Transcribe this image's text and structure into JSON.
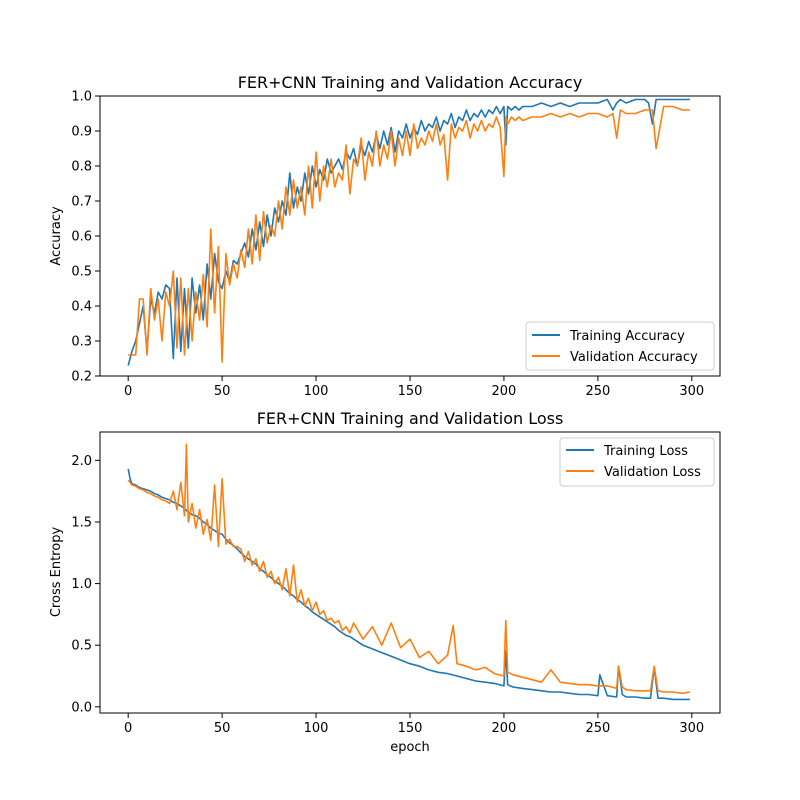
{
  "chart_data": [
    {
      "type": "line",
      "title": "FER+CNN Training and Validation Accuracy",
      "xlabel": "",
      "ylabel": "Accuracy",
      "xlim": [
        -15,
        315
      ],
      "ylim": [
        0.2,
        1.0
      ],
      "xticks": [
        0,
        50,
        100,
        150,
        200,
        250,
        300
      ],
      "yticks": [
        0.2,
        0.3,
        0.4,
        0.5,
        0.6,
        0.7,
        0.8,
        0.9,
        1.0
      ],
      "ytick_labels": [
        "0.2",
        "0.3",
        "0.4",
        "0.5",
        "0.6",
        "0.7",
        "0.8",
        "0.9",
        "1.0"
      ],
      "grid": false,
      "legend": "lower-right",
      "colors": {
        "Training Accuracy": "#1f77b4",
        "Validation Accuracy": "#ff7f0e"
      },
      "series": [
        {
          "name": "Training Accuracy",
          "x": [
            0,
            2,
            4,
            6,
            8,
            10,
            12,
            14,
            16,
            18,
            20,
            22,
            24,
            26,
            28,
            30,
            32,
            34,
            36,
            38,
            40,
            42,
            44,
            46,
            48,
            50,
            52,
            54,
            56,
            58,
            60,
            62,
            64,
            66,
            68,
            70,
            72,
            74,
            76,
            78,
            80,
            82,
            84,
            86,
            88,
            90,
            92,
            94,
            96,
            98,
            100,
            102,
            104,
            106,
            108,
            110,
            112,
            114,
            116,
            118,
            120,
            122,
            124,
            126,
            128,
            130,
            132,
            134,
            136,
            138,
            140,
            142,
            144,
            146,
            148,
            150,
            152,
            154,
            156,
            158,
            160,
            162,
            164,
            166,
            168,
            170,
            172,
            174,
            176,
            178,
            180,
            182,
            184,
            186,
            188,
            190,
            192,
            194,
            196,
            198,
            200,
            201,
            202,
            204,
            206,
            208,
            210,
            215,
            220,
            225,
            230,
            235,
            240,
            245,
            250,
            255,
            258,
            260,
            262,
            265,
            270,
            275,
            277,
            279,
            281,
            285,
            290,
            295,
            299
          ],
          "values": [
            0.23,
            0.27,
            0.3,
            0.35,
            0.4,
            0.27,
            0.42,
            0.38,
            0.44,
            0.42,
            0.46,
            0.45,
            0.25,
            0.48,
            0.27,
            0.45,
            0.28,
            0.48,
            0.38,
            0.46,
            0.36,
            0.52,
            0.42,
            0.55,
            0.47,
            0.45,
            0.5,
            0.47,
            0.53,
            0.52,
            0.55,
            0.58,
            0.54,
            0.62,
            0.56,
            0.64,
            0.57,
            0.66,
            0.6,
            0.68,
            0.64,
            0.7,
            0.66,
            0.78,
            0.68,
            0.74,
            0.7,
            0.78,
            0.72,
            0.8,
            0.74,
            0.79,
            0.76,
            0.82,
            0.78,
            0.8,
            0.82,
            0.79,
            0.84,
            0.82,
            0.85,
            0.8,
            0.86,
            0.83,
            0.87,
            0.84,
            0.89,
            0.85,
            0.9,
            0.86,
            0.91,
            0.84,
            0.9,
            0.88,
            0.92,
            0.88,
            0.91,
            0.89,
            0.93,
            0.9,
            0.92,
            0.91,
            0.94,
            0.9,
            0.93,
            0.92,
            0.95,
            0.91,
            0.94,
            0.93,
            0.96,
            0.93,
            0.95,
            0.94,
            0.96,
            0.94,
            0.96,
            0.95,
            0.97,
            0.95,
            0.97,
            0.86,
            0.97,
            0.96,
            0.97,
            0.96,
            0.97,
            0.97,
            0.98,
            0.97,
            0.98,
            0.97,
            0.98,
            0.98,
            0.98,
            0.99,
            0.96,
            0.98,
            0.99,
            0.98,
            0.99,
            0.99,
            0.98,
            0.92,
            0.99,
            0.99,
            0.99,
            0.99,
            0.99
          ]
        },
        {
          "name": "Validation Accuracy",
          "x": [
            0,
            2,
            4,
            6,
            8,
            10,
            12,
            14,
            16,
            18,
            20,
            22,
            24,
            26,
            28,
            30,
            32,
            34,
            36,
            38,
            40,
            42,
            44,
            46,
            48,
            50,
            52,
            54,
            56,
            58,
            60,
            62,
            64,
            66,
            68,
            70,
            72,
            74,
            76,
            78,
            80,
            82,
            84,
            86,
            88,
            90,
            92,
            94,
            96,
            98,
            100,
            102,
            104,
            106,
            108,
            110,
            112,
            114,
            116,
            118,
            120,
            122,
            124,
            126,
            128,
            130,
            132,
            134,
            136,
            138,
            140,
            142,
            144,
            146,
            148,
            150,
            152,
            154,
            156,
            158,
            160,
            162,
            164,
            166,
            168,
            170,
            172,
            174,
            176,
            178,
            180,
            182,
            184,
            186,
            188,
            190,
            192,
            194,
            196,
            198,
            200,
            201,
            202,
            204,
            206,
            208,
            210,
            215,
            220,
            225,
            230,
            235,
            240,
            245,
            250,
            255,
            258,
            260,
            262,
            265,
            270,
            275,
            277,
            279,
            281,
            285,
            290,
            295,
            299
          ],
          "values": [
            0.26,
            0.26,
            0.26,
            0.42,
            0.42,
            0.26,
            0.45,
            0.36,
            0.42,
            0.3,
            0.44,
            0.4,
            0.5,
            0.28,
            0.48,
            0.26,
            0.45,
            0.3,
            0.44,
            0.36,
            0.49,
            0.34,
            0.62,
            0.38,
            0.57,
            0.24,
            0.55,
            0.46,
            0.52,
            0.48,
            0.56,
            0.51,
            0.62,
            0.52,
            0.66,
            0.53,
            0.67,
            0.58,
            0.63,
            0.6,
            0.7,
            0.62,
            0.74,
            0.66,
            0.76,
            0.68,
            0.74,
            0.66,
            0.8,
            0.68,
            0.84,
            0.7,
            0.8,
            0.74,
            0.82,
            0.74,
            0.78,
            0.76,
            0.86,
            0.72,
            0.82,
            0.8,
            0.88,
            0.76,
            0.84,
            0.8,
            0.9,
            0.8,
            0.86,
            0.82,
            0.9,
            0.8,
            0.88,
            0.83,
            0.9,
            0.83,
            0.92,
            0.85,
            0.88,
            0.86,
            0.9,
            0.87,
            0.92,
            0.86,
            0.89,
            0.76,
            0.92,
            0.88,
            0.91,
            0.9,
            0.93,
            0.88,
            0.92,
            0.9,
            0.93,
            0.9,
            0.92,
            0.91,
            0.94,
            0.91,
            0.77,
            0.94,
            0.92,
            0.94,
            0.93,
            0.94,
            0.93,
            0.94,
            0.94,
            0.95,
            0.94,
            0.95,
            0.94,
            0.95,
            0.95,
            0.94,
            0.95,
            0.88,
            0.96,
            0.95,
            0.95,
            0.96,
            0.96,
            0.96,
            0.85,
            0.97,
            0.97,
            0.96,
            0.96
          ]
        }
      ]
    },
    {
      "type": "line",
      "title": "FER+CNN  Training and Validation Loss",
      "xlabel": "epoch",
      "ylabel": "Cross Entropy",
      "xlim": [
        -15,
        315
      ],
      "ylim": [
        -0.05,
        2.23
      ],
      "xticks": [
        0,
        50,
        100,
        150,
        200,
        250,
        300
      ],
      "yticks": [
        0.0,
        0.5,
        1.0,
        1.5,
        2.0
      ],
      "ytick_labels": [
        "0.0",
        "0.5",
        "1.0",
        "1.5",
        "2.0"
      ],
      "grid": false,
      "legend": "upper-right",
      "colors": {
        "Training Loss": "#1f77b4",
        "Validation Loss": "#ff7f0e"
      },
      "series": [
        {
          "name": "Training Loss",
          "x": [
            0,
            1,
            2,
            4,
            6,
            8,
            10,
            12,
            14,
            16,
            18,
            20,
            22,
            24,
            26,
            28,
            30,
            32,
            34,
            36,
            38,
            40,
            42,
            44,
            46,
            48,
            50,
            52,
            54,
            56,
            58,
            60,
            62,
            64,
            66,
            68,
            70,
            72,
            74,
            76,
            78,
            80,
            82,
            84,
            86,
            88,
            90,
            92,
            94,
            96,
            98,
            100,
            102,
            104,
            106,
            108,
            110,
            112,
            114,
            116,
            118,
            120,
            125,
            130,
            135,
            140,
            145,
            150,
            155,
            160,
            165,
            170,
            175,
            180,
            185,
            190,
            195,
            200,
            201,
            202,
            205,
            210,
            215,
            220,
            225,
            230,
            235,
            240,
            245,
            250,
            251,
            255,
            260,
            261,
            263,
            265,
            270,
            275,
            278,
            280,
            282,
            285,
            290,
            295,
            299
          ],
          "values": [
            1.93,
            1.85,
            1.81,
            1.8,
            1.78,
            1.77,
            1.76,
            1.75,
            1.73,
            1.72,
            1.7,
            1.69,
            1.68,
            1.66,
            1.65,
            1.63,
            1.61,
            1.58,
            1.56,
            1.55,
            1.53,
            1.5,
            1.48,
            1.45,
            1.43,
            1.41,
            1.4,
            1.36,
            1.33,
            1.31,
            1.28,
            1.25,
            1.22,
            1.2,
            1.18,
            1.16,
            1.12,
            1.1,
            1.07,
            1.05,
            1.02,
            1.0,
            0.98,
            0.95,
            0.92,
            0.9,
            0.87,
            0.85,
            0.82,
            0.8,
            0.77,
            0.75,
            0.73,
            0.71,
            0.69,
            0.67,
            0.65,
            0.62,
            0.6,
            0.58,
            0.57,
            0.55,
            0.5,
            0.47,
            0.44,
            0.41,
            0.38,
            0.35,
            0.33,
            0.3,
            0.28,
            0.27,
            0.25,
            0.23,
            0.21,
            0.2,
            0.19,
            0.17,
            0.45,
            0.18,
            0.16,
            0.15,
            0.14,
            0.13,
            0.12,
            0.12,
            0.11,
            0.1,
            0.1,
            0.09,
            0.26,
            0.09,
            0.08,
            0.33,
            0.1,
            0.08,
            0.08,
            0.07,
            0.07,
            0.32,
            0.07,
            0.07,
            0.06,
            0.06,
            0.06
          ]
        },
        {
          "name": "Validation Loss",
          "x": [
            0,
            1,
            2,
            4,
            6,
            8,
            10,
            12,
            14,
            16,
            18,
            20,
            22,
            24,
            26,
            28,
            30,
            31,
            32,
            34,
            36,
            38,
            40,
            42,
            44,
            46,
            48,
            50,
            52,
            54,
            56,
            58,
            60,
            62,
            64,
            66,
            68,
            70,
            72,
            74,
            76,
            78,
            80,
            82,
            84,
            86,
            88,
            90,
            92,
            94,
            96,
            98,
            100,
            102,
            104,
            106,
            108,
            110,
            112,
            114,
            116,
            118,
            120,
            125,
            130,
            135,
            140,
            145,
            150,
            155,
            160,
            165,
            170,
            173,
            175,
            180,
            185,
            190,
            195,
            200,
            201,
            202,
            205,
            210,
            215,
            220,
            225,
            230,
            235,
            240,
            245,
            250,
            255,
            260,
            261,
            263,
            265,
            270,
            275,
            278,
            280,
            282,
            285,
            290,
            295,
            299
          ],
          "values": [
            1.84,
            1.82,
            1.8,
            1.79,
            1.77,
            1.76,
            1.74,
            1.73,
            1.71,
            1.7,
            1.68,
            1.67,
            1.65,
            1.75,
            1.6,
            1.82,
            1.55,
            2.13,
            1.5,
            1.65,
            1.45,
            1.6,
            1.4,
            1.52,
            1.35,
            1.8,
            1.3,
            1.85,
            1.32,
            1.36,
            1.3,
            1.3,
            1.28,
            1.18,
            1.26,
            1.15,
            1.2,
            1.1,
            1.18,
            1.05,
            1.1,
            1.0,
            1.05,
            0.95,
            1.12,
            0.9,
            1.15,
            0.85,
            0.95,
            0.82,
            0.88,
            0.78,
            0.85,
            0.75,
            0.78,
            0.7,
            0.72,
            0.68,
            0.7,
            0.62,
            0.65,
            0.6,
            0.68,
            0.55,
            0.65,
            0.5,
            0.68,
            0.48,
            0.55,
            0.4,
            0.45,
            0.35,
            0.42,
            0.66,
            0.35,
            0.33,
            0.3,
            0.32,
            0.27,
            0.25,
            0.7,
            0.28,
            0.26,
            0.24,
            0.22,
            0.2,
            0.3,
            0.2,
            0.19,
            0.18,
            0.18,
            0.17,
            0.17,
            0.15,
            0.33,
            0.16,
            0.14,
            0.13,
            0.13,
            0.13,
            0.33,
            0.13,
            0.12,
            0.12,
            0.11,
            0.12
          ]
        }
      ]
    }
  ]
}
